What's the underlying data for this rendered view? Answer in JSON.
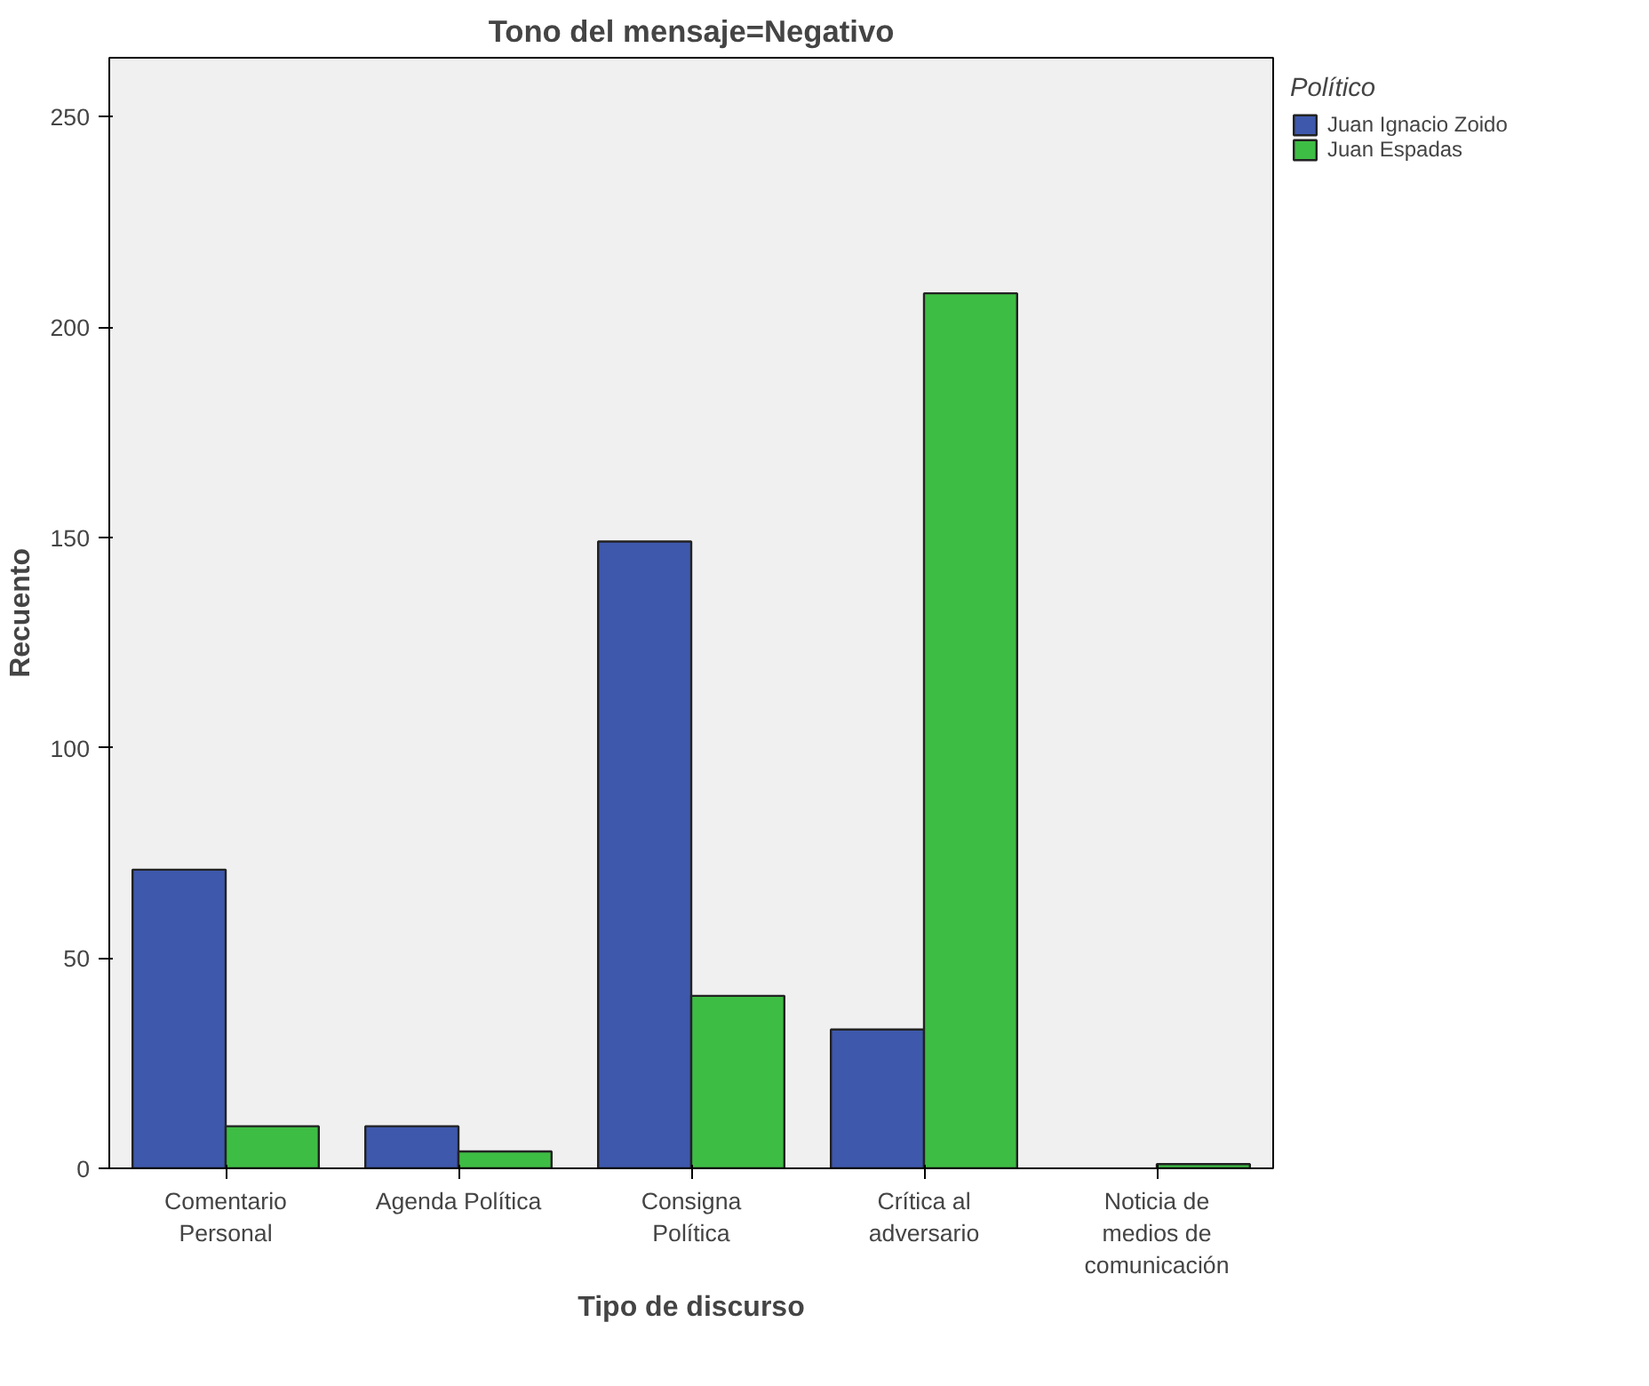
{
  "chart_data": {
    "type": "bar",
    "title": "Tono del mensaje=Negativo",
    "xlabel": "Tipo de discurso",
    "ylabel": "Recuento",
    "legend_title": "Político",
    "categories": [
      "Comentario\nPersonal",
      "Agenda Política",
      "Consigna\nPolítica",
      "Crítica al\nadversario",
      "Noticia de\nmedios de\ncomunicación"
    ],
    "series": [
      {
        "name": "Juan Ignacio Zoido",
        "color": "#3e58ac",
        "values": [
          71,
          10,
          149,
          33,
          null
        ]
      },
      {
        "name": "Juan Espadas",
        "color": "#3ebd44",
        "values": [
          10,
          4,
          41,
          208,
          1
        ]
      }
    ],
    "ylim": [
      0,
      264
    ],
    "yticks": [
      0,
      50,
      100,
      150,
      200,
      250
    ],
    "grid": false,
    "legend": "top right"
  }
}
